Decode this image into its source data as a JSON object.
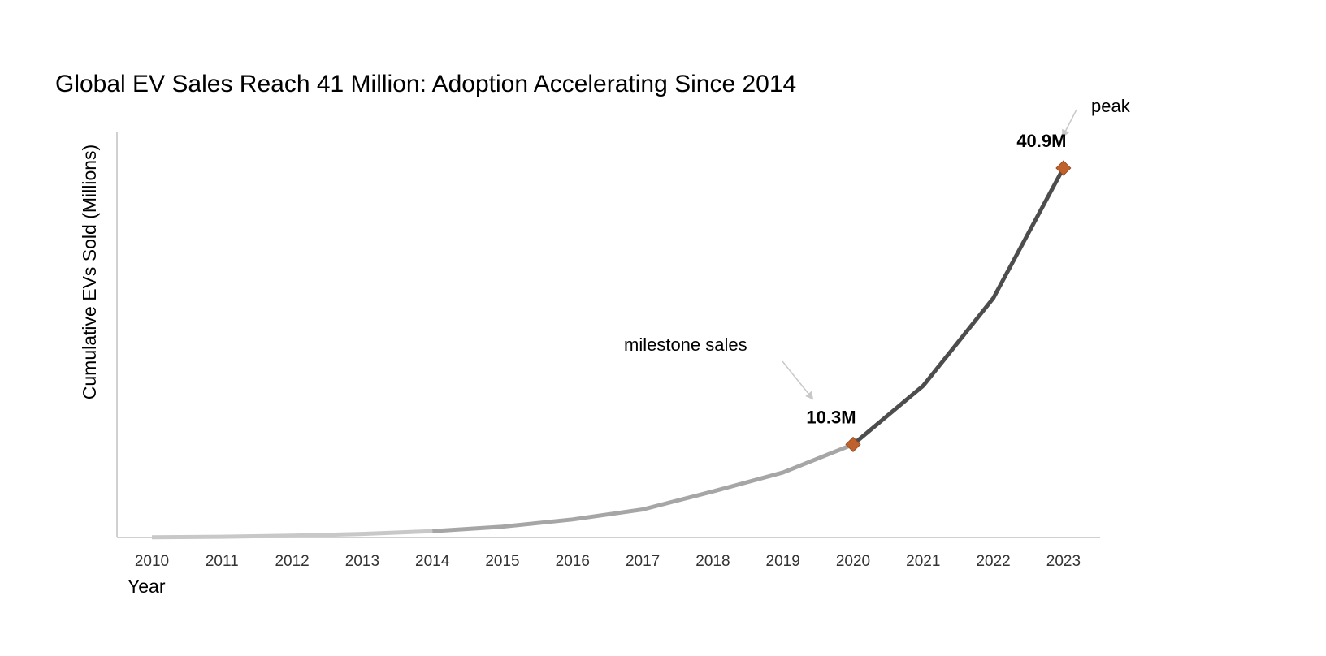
{
  "chart_data": {
    "type": "line",
    "title": "Global EV Sales Reach 41 Million: Adoption Accelerating Since 2014",
    "xlabel": "Year",
    "ylabel": "Cumulative EVs Sold (Millions)",
    "x": [
      "2010",
      "2011",
      "2012",
      "2013",
      "2014",
      "2015",
      "2016",
      "2017",
      "2018",
      "2019",
      "2020",
      "2021",
      "2022",
      "2023"
    ],
    "series": [
      {
        "values": [
          0.02,
          0.08,
          0.2,
          0.4,
          0.7,
          1.2,
          2.0,
          3.1,
          5.1,
          7.2,
          10.3,
          16.8,
          26.5,
          40.9
        ]
      }
    ],
    "ylim": [
      0,
      44
    ],
    "grid": false,
    "y_ticks_shown": false,
    "segments": [
      {
        "from": "2010",
        "to": "2014",
        "color": "#c8c8c8"
      },
      {
        "from": "2014",
        "to": "2020",
        "color": "#a6a6a6"
      },
      {
        "from": "2020",
        "to": "2023",
        "color": "#4d4d4d"
      }
    ],
    "markers": [
      {
        "x": "2020",
        "value": 10.3,
        "label": "10.3M",
        "color": "#c0612b"
      },
      {
        "x": "2023",
        "value": 40.9,
        "label": "40.9M",
        "color": "#c0612b"
      }
    ],
    "annotations": [
      {
        "text": "milestone sales",
        "target": "2020"
      },
      {
        "text": "peak",
        "target": "2023"
      }
    ]
  }
}
